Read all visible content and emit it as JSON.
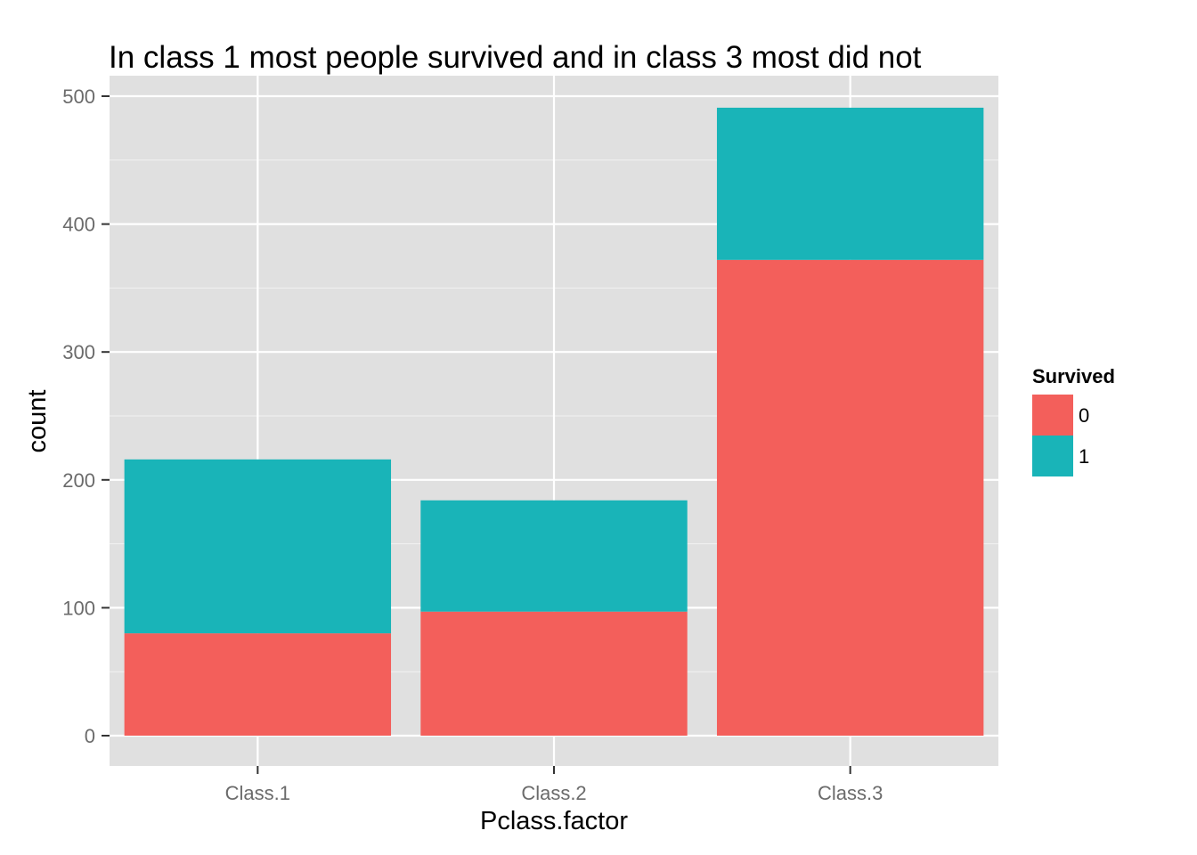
{
  "chart_data": {
    "type": "bar",
    "stacked": true,
    "title": "In class 1 most people survived and in class 3 most did not",
    "xlabel": "Pclass.factor",
    "ylabel": "count",
    "categories": [
      "Class.1",
      "Class.2",
      "Class.3"
    ],
    "series": [
      {
        "name": "0",
        "values": [
          80,
          97,
          372
        ],
        "color": "#F35F5B"
      },
      {
        "name": "1",
        "values": [
          136,
          87,
          119
        ],
        "color": "#19B4B8"
      }
    ],
    "ylim": [
      -24,
      500
    ],
    "yticks": [
      0,
      100,
      200,
      300,
      400,
      500
    ],
    "grid": true,
    "legend": {
      "title": "Survived",
      "position": "right"
    },
    "panel_background": "#E0E0E0",
    "grid_color": "#FFFFFF"
  }
}
